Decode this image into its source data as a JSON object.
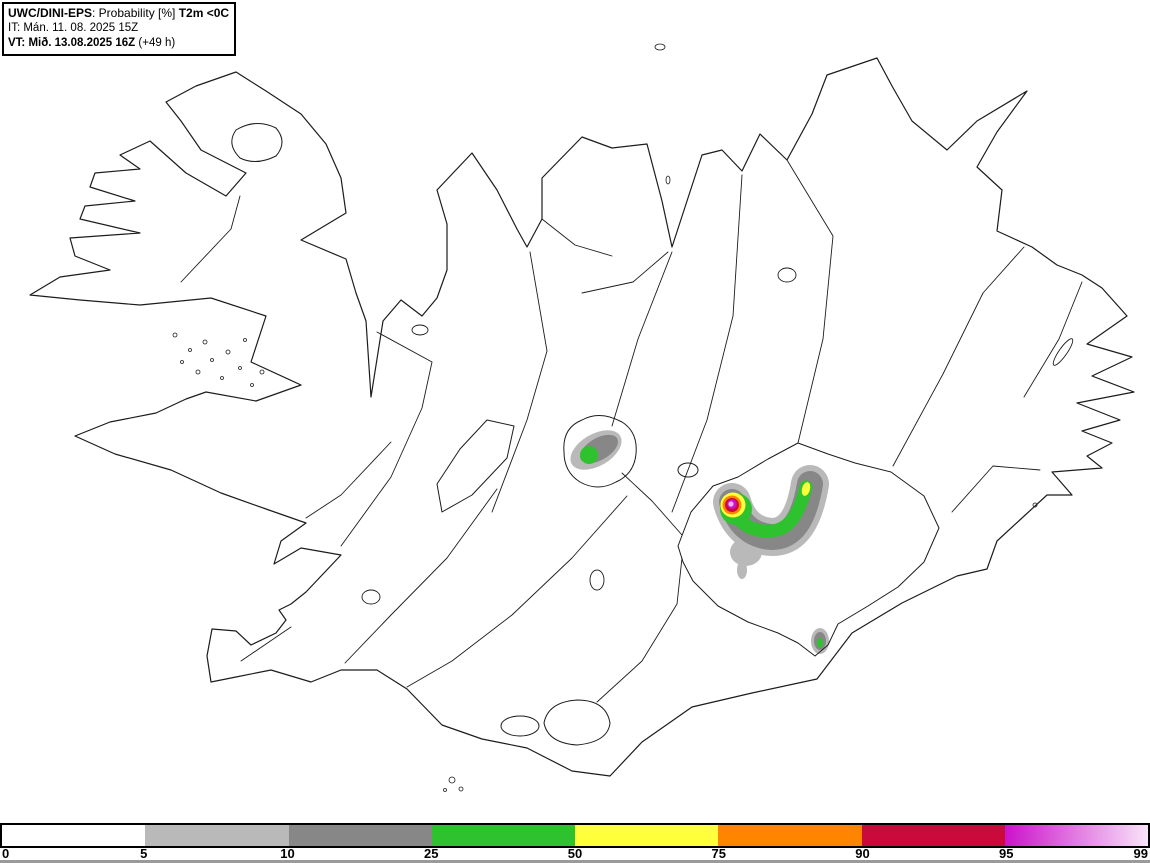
{
  "header": {
    "model": "UWC/DINI-EPS",
    "sep": ": ",
    "product_label": "Probability [%]",
    "parameter": "T2m <0C",
    "init_label": "IT:",
    "init_value": "Mán. 11. 08. 2025 15Z",
    "valid_label": "VT:",
    "valid_value": "Mið. 13.08.2025 16Z",
    "lead_time": "(+49 h)"
  },
  "legend": {
    "unit": "%",
    "ticks": [
      "0",
      "5",
      "10",
      "25",
      "50",
      "75",
      "90",
      "95",
      "99"
    ],
    "segments": [
      {
        "range": "0-5",
        "color": "#ffffff"
      },
      {
        "range": "5-10",
        "color": "#b9b9b9"
      },
      {
        "range": "10-25",
        "color": "#878787"
      },
      {
        "range": "25-50",
        "color": "#2ec22e"
      },
      {
        "range": "50-75",
        "color": "#ffff3c"
      },
      {
        "range": "75-90",
        "color": "#ff8500"
      },
      {
        "range": "90-95",
        "color": "#cb0a3c"
      },
      {
        "range": "95-99",
        "color": "#cb13cb",
        "color_end": "#f9e4f9"
      }
    ]
  },
  "map": {
    "region": "Iceland",
    "stroke_color": "#1c1c1c",
    "colors": {
      "p5": "#b9b9b9",
      "p10": "#878787",
      "p25": "#2ec22e",
      "p50": "#ffff3c",
      "p75": "#ff8500",
      "p90": "#cb0a3c",
      "p95": "#cb13cb",
      "p99": "#f0b2f0"
    },
    "hotspots": [
      {
        "name": "NW-Vatnajökull maximum",
        "max_probability": ">95"
      },
      {
        "name": "NE-Vatnajökull arm",
        "max_probability": ">50"
      },
      {
        "name": "Hofsjökull",
        "max_probability": ">25"
      },
      {
        "name": "Öræfajökull",
        "max_probability": ">25"
      }
    ]
  }
}
